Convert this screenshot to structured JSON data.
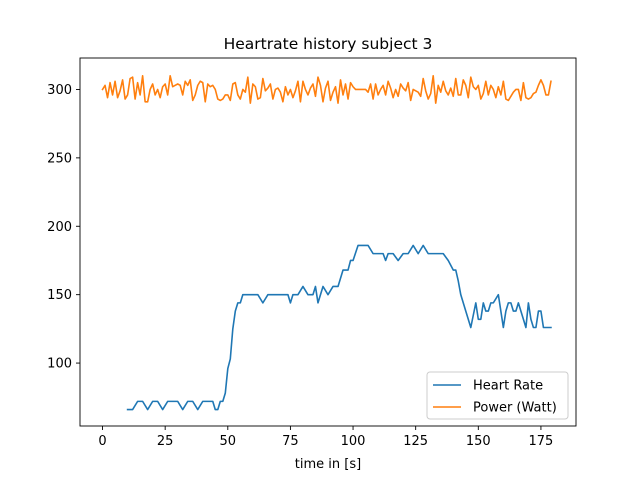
{
  "chart_data": {
    "type": "line",
    "title": "Heartrate history subject 3",
    "xlabel": "time in [s]",
    "ylabel": "",
    "xlim": [
      -9,
      189
    ],
    "ylim": [
      54,
      323
    ],
    "xticks": [
      0,
      25,
      50,
      75,
      100,
      125,
      150,
      175
    ],
    "yticks": [
      100,
      150,
      200,
      250,
      300
    ],
    "grid": false,
    "legend": "lower right",
    "series": [
      {
        "name": "Heart Rate",
        "color": "#1f77b4",
        "x": [
          10,
          12,
          14,
          16,
          18,
          20,
          22,
          24,
          26,
          28,
          30,
          32,
          34,
          36,
          38,
          40,
          42,
          44,
          45,
          46,
          47,
          48,
          49,
          50,
          51,
          52,
          53,
          54,
          55,
          56,
          58,
          60,
          62,
          64,
          66,
          68,
          70,
          72,
          74,
          75,
          76,
          78,
          80,
          82,
          84,
          85,
          86,
          88,
          90,
          92,
          94,
          96,
          98,
          99,
          100,
          102,
          104,
          106,
          108,
          110,
          112,
          113,
          114,
          116,
          118,
          120,
          122,
          124,
          126,
          128,
          130,
          132,
          134,
          136,
          138,
          140,
          141,
          142,
          143,
          145,
          147,
          149,
          150,
          151,
          152,
          153,
          154,
          155,
          156,
          158,
          160,
          161,
          162,
          163,
          164,
          165,
          166,
          168,
          169,
          170,
          171,
          172,
          173,
          174,
          175,
          176,
          177,
          178,
          179
        ],
        "y": [
          66,
          66,
          72,
          72,
          66,
          72,
          72,
          66,
          72,
          72,
          72,
          66,
          72,
          72,
          66,
          72,
          72,
          72,
          66,
          66,
          72,
          72,
          78,
          96,
          103,
          125,
          138,
          144,
          144,
          150,
          150,
          150,
          150,
          144,
          150,
          150,
          150,
          150,
          150,
          144,
          150,
          150,
          156,
          150,
          150,
          156,
          144,
          156,
          150,
          156,
          156,
          168,
          168,
          175,
          175,
          186,
          186,
          186,
          180,
          180,
          180,
          175,
          180,
          180,
          175,
          180,
          180,
          186,
          180,
          186,
          180,
          180,
          180,
          180,
          175,
          168,
          168,
          160,
          150,
          138,
          126,
          144,
          132,
          132,
          144,
          138,
          138,
          144,
          144,
          150,
          126,
          138,
          144,
          144,
          138,
          138,
          144,
          132,
          126,
          144,
          132,
          126,
          126,
          138,
          138,
          126,
          126,
          126,
          126
        ]
      },
      {
        "name": "Power (Watt)",
        "color": "#ff7f0e",
        "x": [
          0,
          1,
          2,
          3,
          4,
          5,
          6,
          7,
          8,
          9,
          10,
          11,
          12,
          13,
          14,
          15,
          16,
          17,
          18,
          19,
          20,
          21,
          22,
          23,
          24,
          25,
          26,
          27,
          28,
          29,
          30,
          31,
          32,
          33,
          34,
          35,
          36,
          37,
          38,
          39,
          40,
          41,
          42,
          43,
          44,
          45,
          46,
          47,
          48,
          49,
          50,
          51,
          52,
          53,
          54,
          55,
          56,
          57,
          58,
          59,
          60,
          61,
          62,
          63,
          64,
          65,
          66,
          67,
          68,
          69,
          70,
          71,
          72,
          73,
          74,
          75,
          76,
          77,
          78,
          79,
          80,
          81,
          82,
          83,
          84,
          85,
          86,
          87,
          88,
          89,
          90,
          91,
          92,
          93,
          94,
          95,
          96,
          97,
          98,
          99,
          100,
          101,
          102,
          103,
          104,
          105,
          106,
          107,
          108,
          109,
          110,
          111,
          112,
          113,
          114,
          115,
          116,
          117,
          118,
          119,
          120,
          121,
          122,
          123,
          124,
          125,
          126,
          127,
          128,
          129,
          130,
          131,
          132,
          133,
          134,
          135,
          136,
          137,
          138,
          139,
          140,
          141,
          142,
          143,
          144,
          145,
          146,
          147,
          148,
          149,
          150,
          151,
          152,
          153,
          154,
          155,
          156,
          157,
          158,
          159,
          160,
          161,
          162,
          163,
          164,
          165,
          166,
          167,
          168,
          169,
          170,
          171,
          172,
          173,
          174,
          175,
          176,
          177,
          178,
          179
        ],
        "y": [
          300,
          303,
          294,
          305,
          296,
          306,
          294,
          299,
          307,
          293,
          296,
          308,
          309,
          293,
          305,
          296,
          310,
          291,
          291,
          300,
          304,
          296,
          300,
          294,
          302,
          304,
          296,
          310,
          302,
          303,
          304,
          303,
          296,
          306,
          303,
          307,
          292,
          296,
          303,
          306,
          305,
          291,
          304,
          302,
          303,
          300,
          293,
          292,
          293,
          296,
          296,
          292,
          304,
          305,
          296,
          293,
          300,
          298,
          309,
          290,
          304,
          302,
          293,
          294,
          308,
          299,
          301,
          304,
          293,
          300,
          301,
          298,
          291,
          302,
          296,
          300,
          294,
          299,
          306,
          291,
          306,
          300,
          296,
          301,
          304,
          295,
          309,
          303,
          291,
          301,
          306,
          292,
          298,
          302,
          290,
          307,
          296,
          304,
          293,
          305,
          302,
          300,
          300,
          300,
          300,
          300,
          298,
          304,
          293,
          304,
          296,
          300,
          303,
          296,
          306,
          301,
          294,
          300,
          295,
          304,
          301,
          299,
          305,
          292,
          300,
          299,
          298,
          295,
          308,
          299,
          293,
          297,
          310,
          290,
          303,
          298,
          306,
          299,
          296,
          301,
          295,
          308,
          296,
          296,
          307,
          303,
          294,
          309,
          302,
          300,
          303,
          293,
          297,
          306,
          296,
          303,
          300,
          294,
          302,
          296,
          306,
          293,
          292,
          295,
          298,
          300,
          300,
          292,
          305,
          294,
          293,
          294,
          297,
          298,
          303,
          307,
          303,
          296,
          296,
          306
        ]
      }
    ]
  }
}
